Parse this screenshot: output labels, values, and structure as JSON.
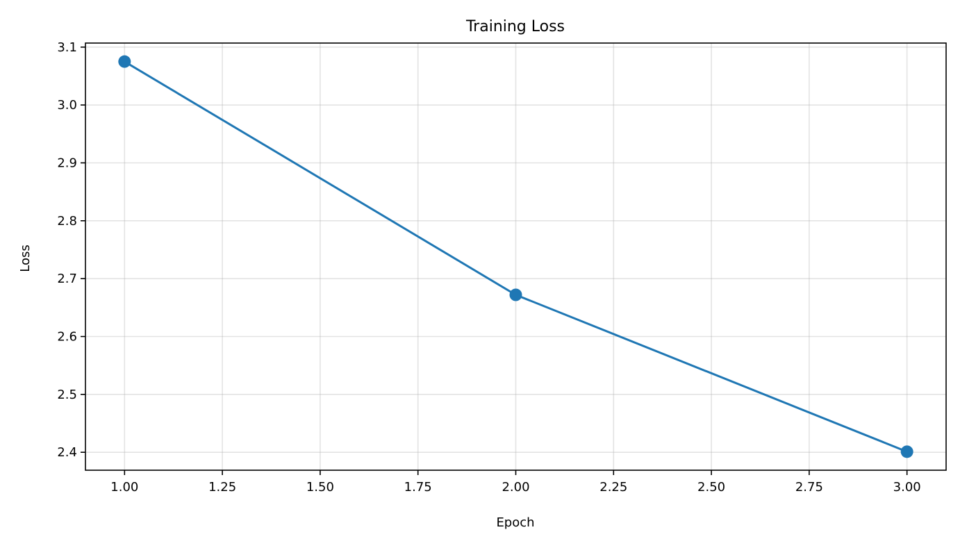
{
  "chart_data": {
    "type": "line",
    "title": "Training Loss",
    "xlabel": "Epoch",
    "ylabel": "Loss",
    "xlim": [
      0.9,
      3.1
    ],
    "ylim": [
      2.369,
      3.107
    ],
    "xticks": [
      "1.00",
      "1.25",
      "1.50",
      "1.75",
      "2.00",
      "2.25",
      "2.50",
      "2.75",
      "3.00"
    ],
    "yticks": [
      "2.4",
      "2.5",
      "2.6",
      "2.7",
      "2.8",
      "2.9",
      "3.0",
      "3.1"
    ],
    "grid": true,
    "series": [
      {
        "x": [
          1,
          2,
          3
        ],
        "values": [
          3.075,
          2.672,
          2.401
        ],
        "color": "#1f77b4",
        "marker": "circle"
      }
    ]
  }
}
